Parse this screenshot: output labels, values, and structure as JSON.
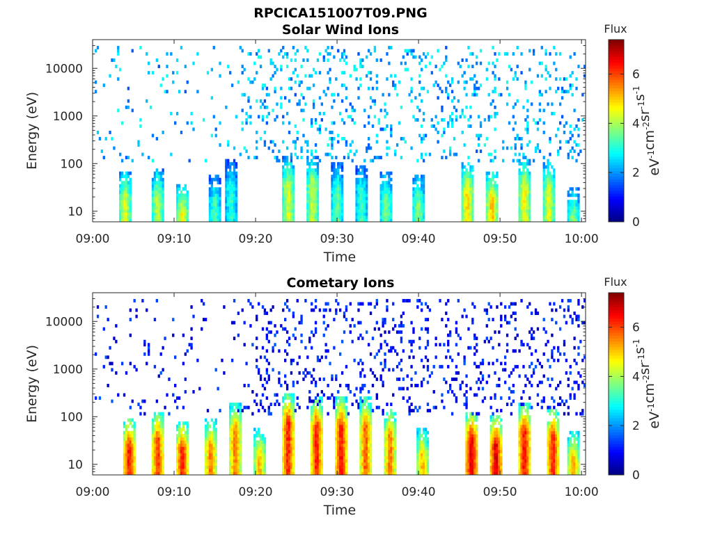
{
  "figure": {
    "title": "RPCICA151007T09.PNG"
  },
  "colorbar": {
    "label": "Flux",
    "unit_label_base": "eV",
    "unit_parts": [
      "eV",
      "-1",
      "cm",
      "-2",
      "sr",
      "-1",
      "s",
      "-1"
    ],
    "range": [
      0,
      7.4
    ],
    "ticks": [
      "0",
      "2",
      "4",
      "6"
    ],
    "colormap": "jet"
  },
  "chart_data": [
    {
      "type": "heatmap",
      "title": "Solar Wind Ions",
      "xlabel": "Time",
      "ylabel": "Energy (eV)",
      "x_ticks": [
        "09:00",
        "09:10",
        "09:20",
        "09:30",
        "09:40",
        "09:50",
        "10:00"
      ],
      "x_range": [
        "09:00",
        "10:00"
      ],
      "y_scale": "log",
      "y_ticks": [
        "10",
        "100",
        "1000",
        "10000"
      ],
      "y_range": [
        6,
        40000
      ],
      "z_range": [
        0,
        7.4
      ],
      "bursts": [
        {
          "t": "09:04",
          "max_energy": 70,
          "peak_flux": 4.6
        },
        {
          "t": "09:08",
          "max_energy": 80,
          "peak_flux": 4.3
        },
        {
          "t": "09:11",
          "max_energy": 40,
          "peak_flux": 4.8
        },
        {
          "t": "09:15",
          "max_energy": 60,
          "peak_flux": 3.4
        },
        {
          "t": "09:17",
          "max_energy": 120,
          "peak_flux": 3.2
        },
        {
          "t": "09:24",
          "max_energy": 140,
          "peak_flux": 4.5
        },
        {
          "t": "09:27",
          "max_energy": 140,
          "peak_flux": 4.4
        },
        {
          "t": "09:30",
          "max_energy": 100,
          "peak_flux": 3.6
        },
        {
          "t": "09:33",
          "max_energy": 90,
          "peak_flux": 3.4
        },
        {
          "t": "09:36",
          "max_energy": 70,
          "peak_flux": 3.8
        },
        {
          "t": "09:40",
          "max_energy": 60,
          "peak_flux": 3.9
        },
        {
          "t": "09:46",
          "max_energy": 110,
          "peak_flux": 5.0
        },
        {
          "t": "09:49",
          "max_energy": 70,
          "peak_flux": 5.2
        },
        {
          "t": "09:53",
          "max_energy": 120,
          "peak_flux": 4.8
        },
        {
          "t": "09:56",
          "max_energy": 110,
          "peak_flux": 4.6
        },
        {
          "t": "09:59",
          "max_energy": 30,
          "peak_flux": 4.0
        }
      ],
      "background": {
        "energy_range": [
          100,
          30000
        ],
        "flux_range": [
          1.5,
          3.0
        ]
      }
    },
    {
      "type": "heatmap",
      "title": "Cometary Ions",
      "xlabel": "Time",
      "ylabel": "Energy (eV)",
      "x_ticks": [
        "09:00",
        "09:10",
        "09:20",
        "09:30",
        "09:40",
        "09:50",
        "10:00"
      ],
      "x_range": [
        "09:00",
        "10:00"
      ],
      "y_scale": "log",
      "y_ticks": [
        "10",
        "100",
        "1000",
        "10000"
      ],
      "y_range": [
        6,
        40000
      ],
      "z_range": [
        0,
        7.4
      ],
      "bursts": [
        {
          "t": "09:04.5",
          "max_energy": 90,
          "peak_flux": 6.6
        },
        {
          "t": "09:08",
          "max_energy": 130,
          "peak_flux": 6.3
        },
        {
          "t": "09:11",
          "max_energy": 80,
          "peak_flux": 6.5
        },
        {
          "t": "09:14.5",
          "max_energy": 90,
          "peak_flux": 5.8
        },
        {
          "t": "09:17.5",
          "max_energy": 200,
          "peak_flux": 5.8
        },
        {
          "t": "09:20.5",
          "max_energy": 60,
          "peak_flux": 5.3
        },
        {
          "t": "09:24",
          "max_energy": 300,
          "peak_flux": 6.5
        },
        {
          "t": "09:27.5",
          "max_energy": 250,
          "peak_flux": 6.5
        },
        {
          "t": "09:30.5",
          "max_energy": 250,
          "peak_flux": 6.6
        },
        {
          "t": "09:33.5",
          "max_energy": 250,
          "peak_flux": 6.0
        },
        {
          "t": "09:36.5",
          "max_energy": 150,
          "peak_flux": 5.8
        },
        {
          "t": "09:40.5",
          "max_energy": 60,
          "peak_flux": 5.3
        },
        {
          "t": "09:46.5",
          "max_energy": 130,
          "peak_flux": 7.0
        },
        {
          "t": "09:49.5",
          "max_energy": 100,
          "peak_flux": 7.0
        },
        {
          "t": "09:53",
          "max_energy": 200,
          "peak_flux": 6.6
        },
        {
          "t": "09:56.5",
          "max_energy": 150,
          "peak_flux": 6.5
        },
        {
          "t": "09:59",
          "max_energy": 50,
          "peak_flux": 5.5
        }
      ],
      "background": {
        "energy_range": [
          100,
          30000
        ],
        "flux_range": [
          0.4,
          1.6
        ]
      }
    }
  ]
}
